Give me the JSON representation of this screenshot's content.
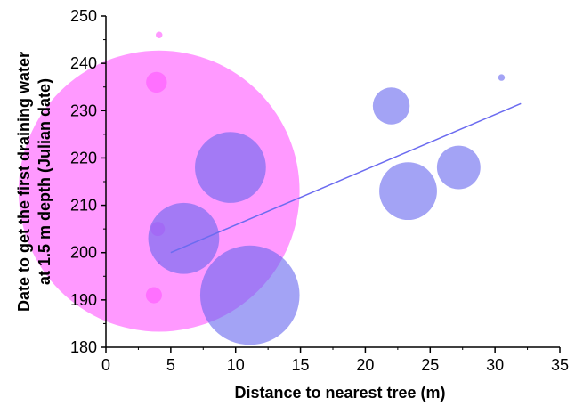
{
  "chart_data": {
    "type": "scatter",
    "xlabel": "Distance to nearest tree  (m)",
    "ylabel_line1": "Date to get the first draining water",
    "ylabel_line2": "at 1.5 m depth (Julian date)",
    "xlim": [
      0,
      35
    ],
    "ylim": [
      180,
      250
    ],
    "xticks": [
      0,
      5,
      10,
      15,
      20,
      25,
      30,
      35
    ],
    "yticks": [
      180,
      190,
      200,
      210,
      220,
      230,
      240,
      250
    ],
    "grid": false,
    "colors": {
      "pink": "#ff55ff",
      "pink_opacity": 0.6,
      "blue": "#6666ee",
      "blue_opacity": 0.6,
      "trend_line": "#6b6bf0",
      "axis": "#000000"
    },
    "series": [
      {
        "color_key": "pink",
        "points": [
          {
            "x": 4.1,
            "y": 246,
            "size": 0.7
          },
          {
            "x": 3.9,
            "y": 236,
            "size": 2.2
          },
          {
            "x": 4.1,
            "y": 213,
            "size": 29.7
          },
          {
            "x": 4.0,
            "y": 205,
            "size": 1.5
          },
          {
            "x": 3.7,
            "y": 191,
            "size": 1.7
          },
          {
            "x": 4.1,
            "y": 198,
            "size": 0.3
          }
        ]
      },
      {
        "color_key": "blue",
        "points": [
          {
            "x": 30.5,
            "y": 237,
            "size": 0.7
          },
          {
            "x": 22.0,
            "y": 231,
            "size": 3.9
          },
          {
            "x": 9.6,
            "y": 218,
            "size": 7.5
          },
          {
            "x": 27.2,
            "y": 218,
            "size": 4.6
          },
          {
            "x": 23.3,
            "y": 213,
            "size": 6.1
          },
          {
            "x": 6.0,
            "y": 203,
            "size": 7.5
          },
          {
            "x": 11.1,
            "y": 191,
            "size": 10.5
          }
        ]
      }
    ],
    "trend_line": {
      "x": [
        5.0,
        32.0
      ],
      "y": [
        200.0,
        231.5
      ]
    }
  }
}
